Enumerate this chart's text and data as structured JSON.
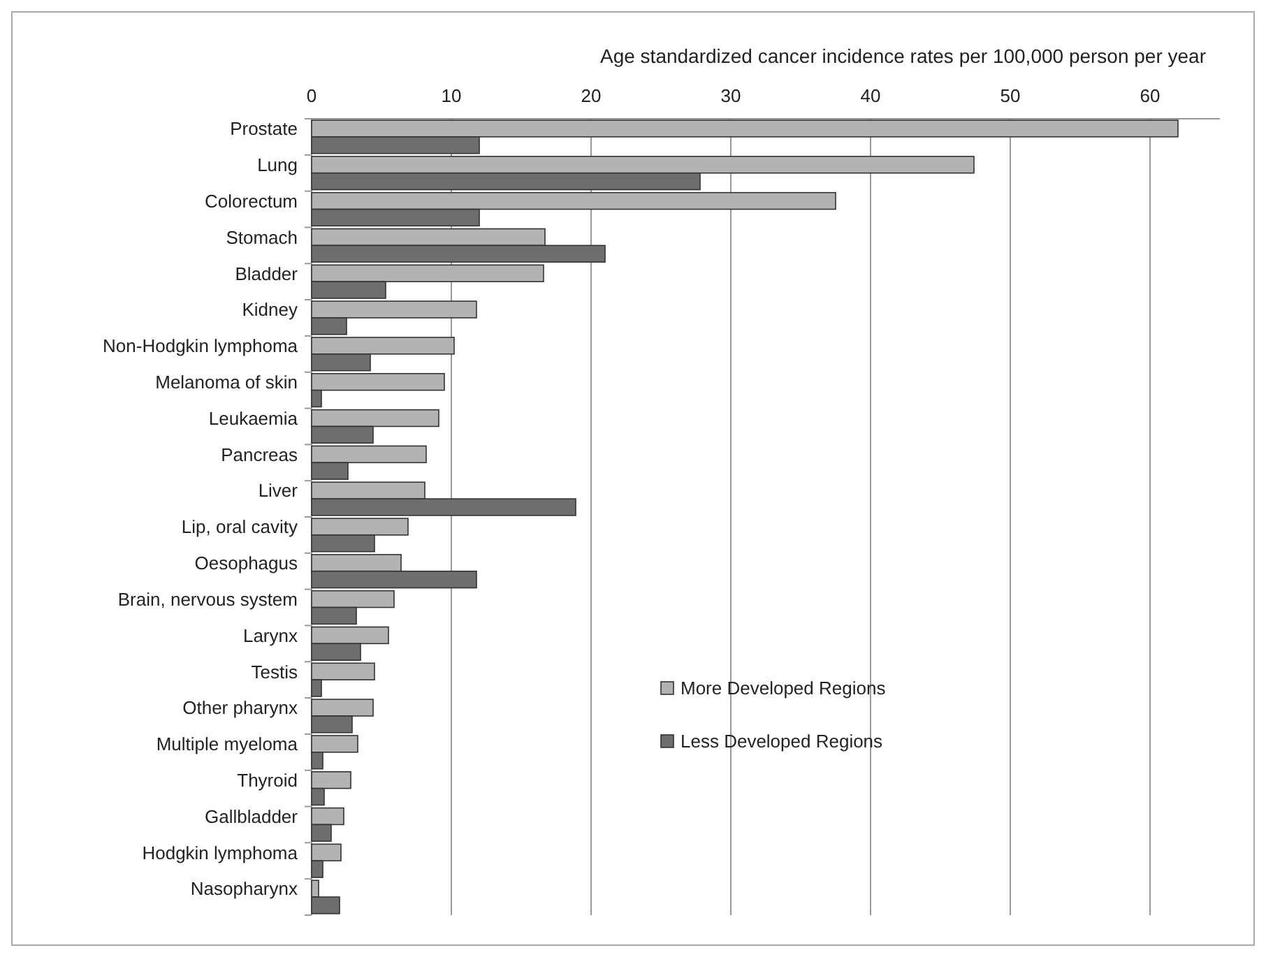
{
  "chart_data": {
    "type": "bar",
    "orientation": "horizontal",
    "xlabel": "Age standardized cancer incidence rates per 100,000 person per year",
    "categories": [
      "Prostate",
      "Lung",
      "Colorectum",
      "Stomach",
      "Bladder",
      "Kidney",
      "Non-Hodgkin lymphoma",
      "Melanoma of skin",
      "Leukaemia",
      "Pancreas",
      "Liver",
      "Lip, oral cavity",
      "Oesophagus",
      "Brain, nervous system",
      "Larynx",
      "Testis",
      "Other pharynx",
      "Multiple myeloma",
      "Thyroid",
      "Gallbladder",
      "Hodgkin lymphoma",
      "Nasopharynx"
    ],
    "series": [
      {
        "name": "More Developed Regions",
        "color": "#b3b3b3",
        "values": [
          62.0,
          47.4,
          37.5,
          16.7,
          16.6,
          11.8,
          10.2,
          9.5,
          9.1,
          8.2,
          8.1,
          6.9,
          6.4,
          5.9,
          5.5,
          4.5,
          4.4,
          3.3,
          2.8,
          2.3,
          2.1,
          0.5
        ]
      },
      {
        "name": "Less Developed Regions",
        "color": "#6e6e6e",
        "values": [
          12.0,
          27.8,
          12.0,
          21.0,
          5.3,
          2.5,
          4.2,
          0.7,
          4.4,
          2.6,
          18.9,
          4.5,
          11.8,
          3.2,
          3.5,
          0.7,
          2.9,
          0.8,
          0.9,
          1.4,
          0.8,
          2.0
        ]
      }
    ],
    "xlim": [
      0,
      65
    ],
    "xticks": [
      0,
      10,
      20,
      30,
      40,
      50,
      60
    ],
    "grid": "x",
    "legend": "right"
  }
}
